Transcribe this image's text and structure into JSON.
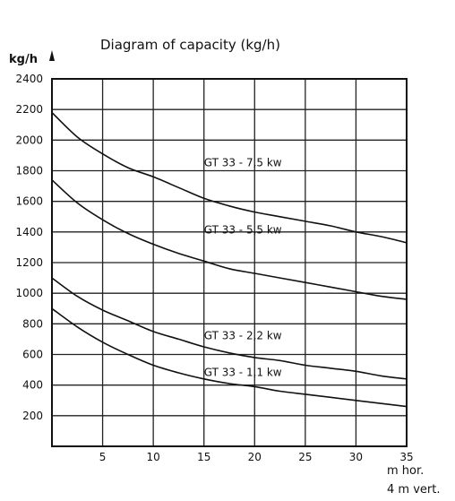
{
  "chart_data": {
    "type": "line",
    "title": "Diagram of capacity  (kg/h)",
    "ylabel": "kg/h",
    "xlabel_lines": [
      "m hor.",
      "4 m vert."
    ],
    "xlim": [
      0,
      35
    ],
    "ylim": [
      0,
      2400
    ],
    "xticks": [
      5,
      10,
      15,
      20,
      25,
      30,
      35
    ],
    "yticks": [
      200,
      400,
      600,
      800,
      1000,
      1200,
      1400,
      1600,
      1800,
      2000,
      2200,
      2400
    ],
    "grid": true,
    "series": [
      {
        "name": "GT 33 - 7,5 kw",
        "x": [
          0,
          2.5,
          5,
          7.5,
          10,
          12.5,
          15,
          17.5,
          20,
          22.5,
          25,
          27.5,
          30,
          32.5,
          35
        ],
        "y": [
          2180,
          2020,
          1910,
          1820,
          1760,
          1690,
          1620,
          1570,
          1530,
          1500,
          1470,
          1440,
          1400,
          1370,
          1330
        ]
      },
      {
        "name": "GT 33 - 5,5 kw",
        "x": [
          0,
          2.5,
          5,
          7.5,
          10,
          12.5,
          15,
          17.5,
          20,
          22.5,
          25,
          27.5,
          30,
          32.5,
          35
        ],
        "y": [
          1740,
          1590,
          1480,
          1390,
          1320,
          1260,
          1210,
          1160,
          1130,
          1100,
          1070,
          1040,
          1010,
          980,
          960
        ]
      },
      {
        "name": "GT 33 - 2,2 kw",
        "x": [
          0,
          2.5,
          5,
          7.5,
          10,
          12.5,
          15,
          17.5,
          20,
          22.5,
          25,
          27.5,
          30,
          32.5,
          35
        ],
        "y": [
          1100,
          980,
          890,
          820,
          750,
          700,
          650,
          610,
          580,
          560,
          530,
          510,
          490,
          460,
          440
        ]
      },
      {
        "name": "GT 33 - 1,1 kw",
        "x": [
          0,
          2.5,
          5,
          7.5,
          10,
          12.5,
          15,
          17.5,
          20,
          22.5,
          25,
          27.5,
          30,
          32.5,
          35
        ],
        "y": [
          900,
          780,
          680,
          600,
          530,
          480,
          440,
          410,
          390,
          360,
          340,
          320,
          300,
          280,
          260
        ]
      }
    ]
  }
}
